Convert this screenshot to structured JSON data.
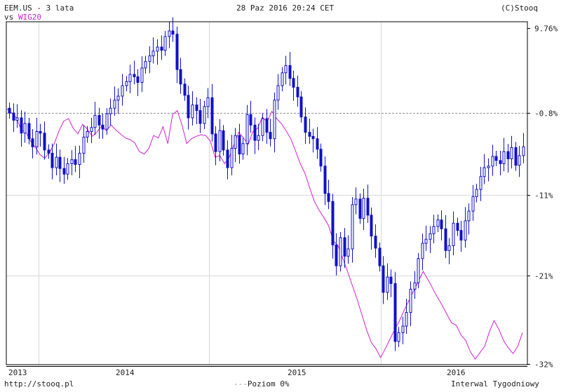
{
  "header": {
    "title": "EEM.US - 3 lata",
    "vs_prefix": "vs",
    "compare_symbol": "WIG20",
    "timestamp": "28 Paz 2016 20:24 CET",
    "copyright": "(C)Stooq"
  },
  "footer": {
    "url": "http://stooq.pl",
    "baseline_legend": "Poziom 0%",
    "interval": "Interwal Tygodniowy"
  },
  "colors": {
    "candles": "#1010c8",
    "compare_line": "#d020d0",
    "grid": "#d8d8d8",
    "baseline": "#909090",
    "axis": "#000000"
  },
  "chart_data": {
    "type": "line",
    "title": "EEM.US - 3 lata",
    "interval": "weekly",
    "y_unit": "% change",
    "ylim": [
      -32,
      9.76
    ],
    "y_ticks": [
      "9.76%",
      "-0.8%",
      "-11%",
      "-21%",
      "-32%"
    ],
    "y_tick_values": [
      9.76,
      -0.8,
      -11,
      -21,
      -32
    ],
    "baseline_value": -0.8,
    "x_ticks": [
      "2013",
      "2014",
      "2015",
      "2016"
    ],
    "grid": true,
    "series": [
      {
        "name": "EEM.US",
        "style": "candlestick",
        "close": [
          -0.8,
          -1.7,
          -1.4,
          -3.3,
          -2.1,
          -4.0,
          -5.0,
          -3.1,
          -3.3,
          -5.4,
          -5.8,
          -7.6,
          -6.3,
          -7.7,
          -8.4,
          -7.1,
          -6.6,
          -7.2,
          -5.8,
          -3.8,
          -3.1,
          -2.6,
          -1.1,
          -2.3,
          -2.8,
          -0.9,
          -0.2,
          0.8,
          1.3,
          2.6,
          3.1,
          4.0,
          3.7,
          3.0,
          4.8,
          5.6,
          6.3,
          6.9,
          7.4,
          7.0,
          8.7,
          9.4,
          9.0,
          4.6,
          2.8,
          1.4,
          -1.4,
          0.2,
          -0.5,
          -2.1,
          0.0,
          1.1,
          -3.4,
          -5.6,
          -3.0,
          -5.4,
          -7.6,
          -5.2,
          -3.6,
          -5.9,
          -4.6,
          -1.0,
          -2.3,
          -4.2,
          -3.6,
          -1.5,
          -3.2,
          -4.0,
          0.8,
          2.6,
          4.2,
          5.1,
          3.5,
          2.4,
          1.2,
          -1.3,
          -3.2,
          -3.7,
          -4.0,
          -5.3,
          -7.4,
          -10.8,
          -11.8,
          -17.2,
          -19.8,
          -16.3,
          -18.6,
          -17.7,
          -12.2,
          -11.5,
          -13.9,
          -11.4,
          -13.5,
          -16.1,
          -17.6,
          -19.8,
          -23.1,
          -21.2,
          -22.0,
          -29.2,
          -28.1,
          -27.3,
          -25.6,
          -22.7,
          -21.9,
          -18.9,
          -17.0,
          -16.5,
          -15.8,
          -14.9,
          -14.1,
          -15.2,
          -17.9,
          -17.3,
          -14.5,
          -15.4,
          -16.6,
          -14.2,
          -13.0,
          -11.2,
          -10.3,
          -8.7,
          -7.6,
          -7.4,
          -6.2,
          -6.7,
          -7.1,
          -5.6,
          -6.5,
          -5.1,
          -7.3,
          -6.1,
          -5.0
        ]
      },
      {
        "name": "WIG20",
        "style": "line",
        "values": [
          -0.3,
          -0.8,
          -1.4,
          -2.9,
          -3.2,
          -4.3,
          -5.1,
          -6.0,
          -6.4,
          -5.7,
          -4.6,
          -3.0,
          -1.8,
          -1.5,
          -2.7,
          -3.4,
          -2.2,
          -2.8,
          -3.7,
          -3.2,
          -2.4,
          -3.0,
          -2.3,
          -2.9,
          -3.4,
          -3.9,
          -4.1,
          -4.5,
          -5.6,
          -5.9,
          -5.2,
          -3.6,
          -3.9,
          -2.5,
          -4.6,
          -1.0,
          -0.5,
          -2.3,
          -4.6,
          -4.0,
          -3.7,
          -3.5,
          -3.6,
          -4.3,
          -6.3,
          -6.1,
          -7.1,
          -6.3,
          -4.7,
          -3.2,
          -3.9,
          -4.7,
          -3.1,
          -2.7,
          -1.3,
          -1.9,
          -0.6,
          -1.5,
          -2.1,
          -3.0,
          -4.0,
          -5.5,
          -7.1,
          -8.3,
          -10.1,
          -11.8,
          -12.9,
          -13.8,
          -14.8,
          -16.7,
          -17.3,
          -18.9,
          -20.5,
          -22.2,
          -23.9,
          -25.8,
          -27.7,
          -29.3,
          -30.1,
          -31.2,
          -30.1,
          -28.9,
          -27.7,
          -26.6,
          -25.3,
          -24.1,
          -22.9,
          -21.7,
          -20.5,
          -21.5,
          -22.6,
          -23.7,
          -24.7,
          -25.8,
          -26.9,
          -27.2,
          -28.4,
          -29.1,
          -30.5,
          -31.4,
          -30.6,
          -29.8,
          -28.0,
          -26.6,
          -27.7,
          -29.1,
          -30.0,
          -30.7,
          -29.8,
          -28.1
        ]
      }
    ]
  }
}
